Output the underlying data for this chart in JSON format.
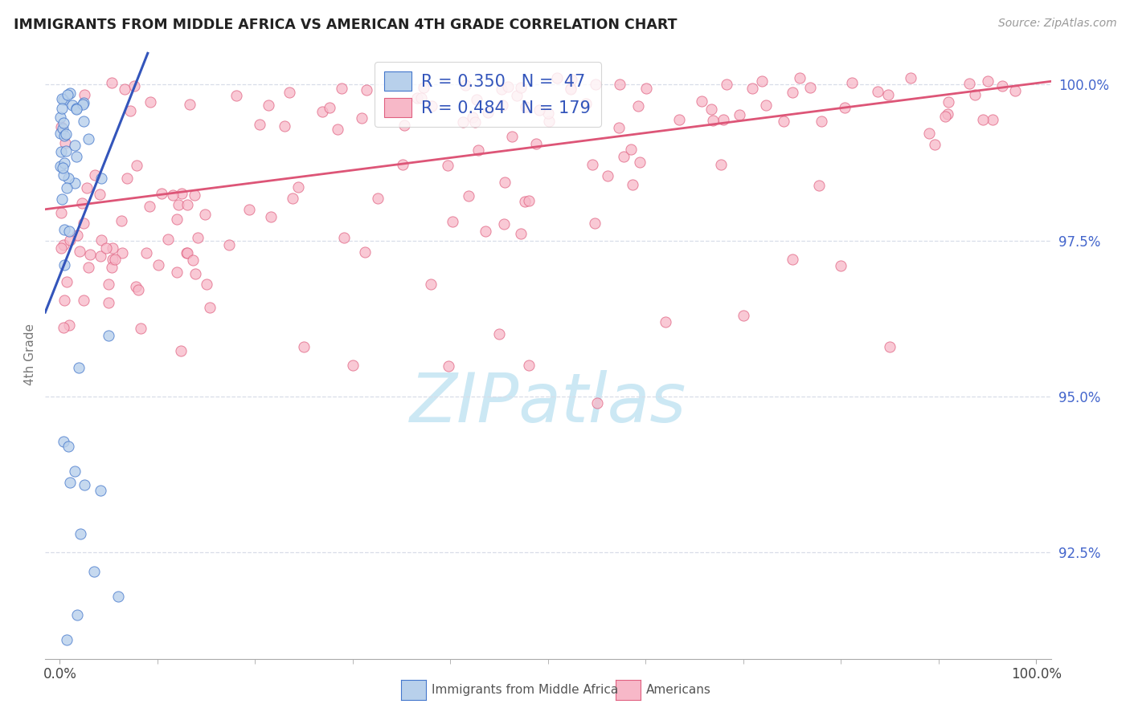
{
  "title": "IMMIGRANTS FROM MIDDLE AFRICA VS AMERICAN 4TH GRADE CORRELATION CHART",
  "source": "Source: ZipAtlas.com",
  "ylabel": "4th Grade",
  "ymin": 90.8,
  "ymax": 100.55,
  "xmin": -1.5,
  "xmax": 101.5,
  "blue_R": 0.35,
  "blue_N": 47,
  "pink_R": 0.484,
  "pink_N": 179,
  "blue_fill": "#b8d0eb",
  "pink_fill": "#f7b8c8",
  "blue_edge": "#4477cc",
  "pink_edge": "#e06080",
  "blue_line": "#3355bb",
  "pink_line": "#dd5577",
  "watermark_color": "#cce8f4",
  "legend_label_blue": "Immigrants from Middle Africa",
  "legend_label_pink": "Americans",
  "ytick_vals": [
    92.5,
    95.0,
    97.5,
    100.0
  ],
  "ytick_labels": [
    "92.5%",
    "95.0%",
    "97.5%",
    "100.0%"
  ],
  "xtick_minor_positions": [
    10,
    20,
    30,
    40,
    50,
    60,
    70,
    80,
    90
  ],
  "grid_color": "#d8dde8",
  "axis_color": "#aaaaaa",
  "title_color": "#222222",
  "label_color": "#777777",
  "ytick_color": "#4466cc",
  "xtick_label_color": "#444444",
  "legend_text_color": "#3355bb",
  "blue_line_start_x": -1.5,
  "blue_line_end_x": 9.0,
  "blue_line_start_y": 96.35,
  "blue_line_end_y": 100.5,
  "pink_line_start_x": -1.5,
  "pink_line_end_x": 101.5,
  "pink_line_start_y": 98.0,
  "pink_line_end_y": 100.05
}
